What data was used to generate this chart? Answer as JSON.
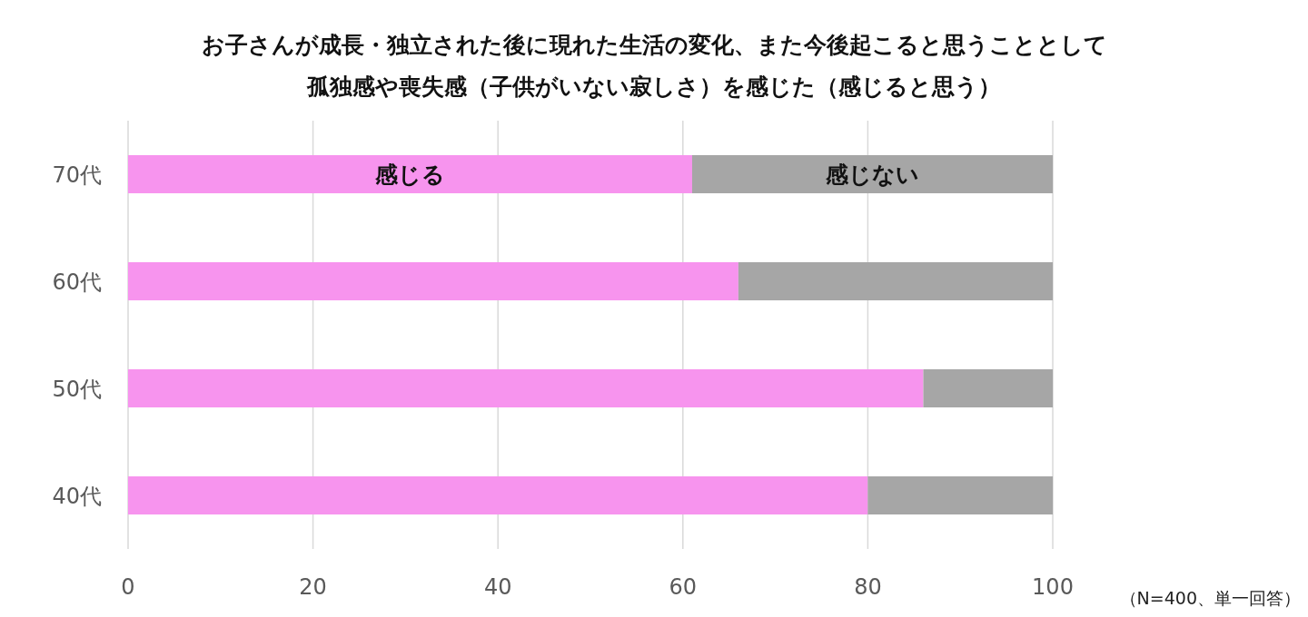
{
  "chart_data": {
    "type": "bar",
    "orientation": "horizontal",
    "stacked": true,
    "title": "お子さんが成長・独立された後に現れた生活の変化、また今後起こると思うこととして",
    "subtitle": "孤独感や喪失感（子供がいない寂しさ）を感じた（感じると思う）",
    "categories": [
      "70代",
      "60代",
      "50代",
      "40代"
    ],
    "series": [
      {
        "name": "感じる",
        "color": "#f794ee",
        "values": [
          61,
          66,
          86,
          80
        ]
      },
      {
        "name": "感じない",
        "color": "#a6a6a6",
        "values": [
          39,
          34,
          14,
          20
        ]
      }
    ],
    "xlim": [
      0,
      100
    ],
    "xticks": [
      0,
      20,
      40,
      60,
      80,
      100
    ],
    "grid": "x",
    "annotations": [
      "（N=400、単一回答）"
    ]
  }
}
